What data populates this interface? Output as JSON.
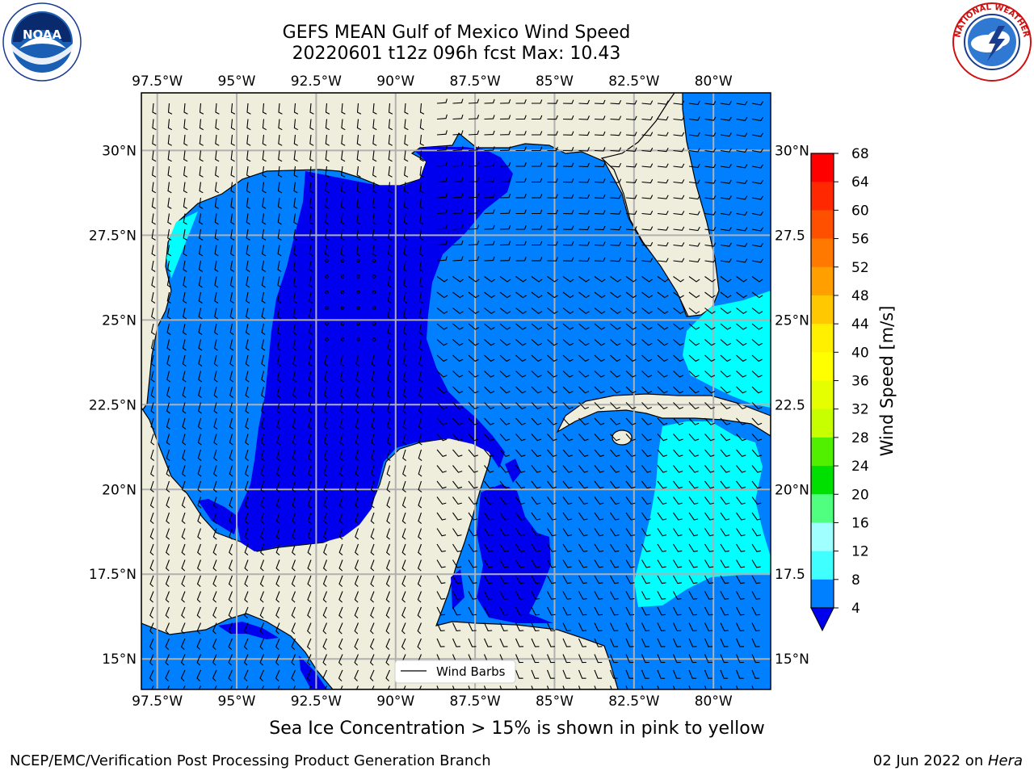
{
  "header": {
    "title": "GEFS MEAN Gulf of Mexico Wind Speed",
    "subtitle": "20220601 t12z 096h fcst   Max: 10.43"
  },
  "logos": {
    "noaa": {
      "text": "NOAA",
      "ring_text": "NATIONAL OCEANIC AND ATMOSPHERIC ADMINISTRATION · U.S. DEPARTMENT OF COMMERCE"
    },
    "nws": {
      "ring_text": "NATIONAL WEATHER SERVICE"
    }
  },
  "map": {
    "lon_labels": [
      "97.5°W",
      "95°W",
      "92.5°W",
      "90°W",
      "87.5°W",
      "85°W",
      "82.5°W",
      "80°W"
    ],
    "lon_values": [
      -97.5,
      -95,
      -92.5,
      -90,
      -87.5,
      -85,
      -82.5,
      -80
    ],
    "lat_labels": [
      "30°N",
      "27.5°N",
      "25°N",
      "22.5°N",
      "20°N",
      "17.5°N",
      "15°N"
    ],
    "lat_labels_right": [
      "30°N",
      "27.5",
      "25°N",
      "22.5",
      "20°N",
      "17.5",
      "15°N"
    ],
    "lat_values": [
      30,
      27.5,
      25,
      22.5,
      20,
      17.5,
      15
    ],
    "extent": {
      "lon_min": -98,
      "lon_max": -78.2,
      "lat_min": 14.1,
      "lat_max": 31.7
    },
    "colors": {
      "land": "#efeedc",
      "ocean_4_8": "#0080ff",
      "ocean_lt4": "#0000ee",
      "ocean_8_12": "#00ffff",
      "ocean_12_16": "#40ffff",
      "grid": "#b0b0b0"
    },
    "legend_label": "Wind Barbs",
    "legend_location": "lower-center"
  },
  "colorbar": {
    "label": "Wind Speed [m/s]",
    "ticks": [
      "68",
      "64",
      "60",
      "56",
      "52",
      "48",
      "44",
      "40",
      "36",
      "32",
      "28",
      "24",
      "20",
      "16",
      "12",
      "8",
      "4"
    ],
    "colors_top_to_bottom": [
      "#ff0000",
      "#ff2800",
      "#ff5000",
      "#ff7800",
      "#ffa000",
      "#ffc800",
      "#fff000",
      "#ffff00",
      "#e6ff00",
      "#c8ff00",
      "#78ff00",
      "#50f000",
      "#00e000",
      "#50ff80",
      "#a0ffff",
      "#40ffff",
      "#00ffff",
      "#0080ff"
    ],
    "under_color": "#0000ee"
  },
  "caption": "Sea Ice Concentration > 15% is shown in pink to yellow",
  "footer": {
    "left": "NCEP/EMC/Verification Post Processing Product Generation Branch",
    "right_date": "02 Jun 2022 on ",
    "right_machine": "Hera"
  }
}
